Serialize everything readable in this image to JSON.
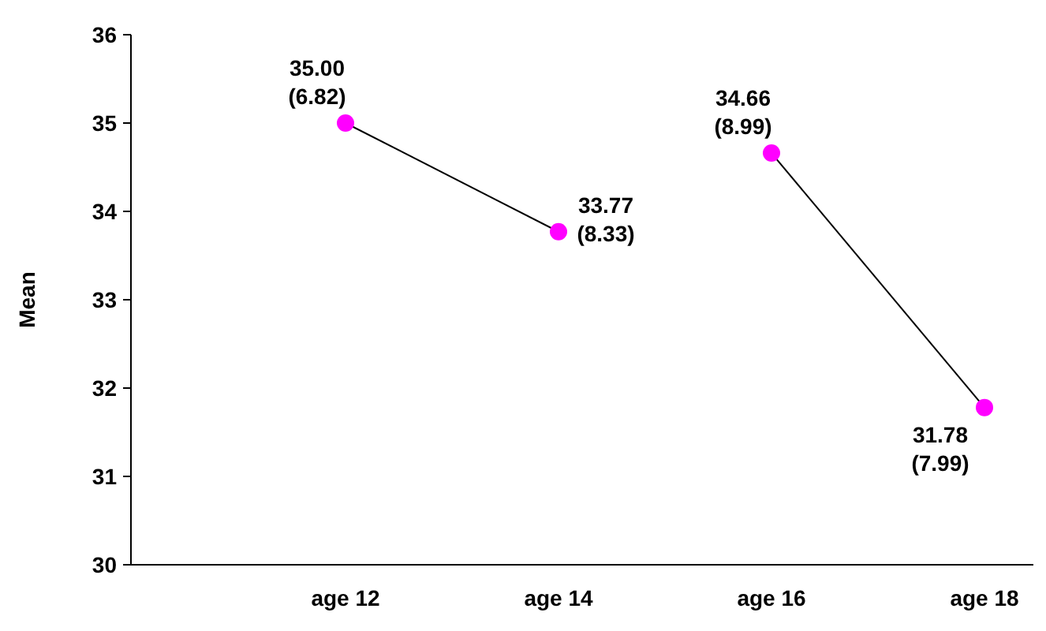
{
  "chart_data": {
    "type": "line",
    "ylabel": "Mean",
    "categories": [
      null,
      "age 12",
      "age 14",
      "age 16",
      "age 18"
    ],
    "series": [
      {
        "color": "#ff00ff",
        "values": [
          null,
          35,
          33.77,
          null,
          null
        ],
        "value_labels": [
          null,
          "35.00\n(6.82)",
          "33.77\n(8.33)",
          null,
          null
        ]
      },
      {
        "color": "#ff00ff",
        "values": [
          null,
          null,
          null,
          34.66,
          31.78
        ],
        "value_labels": [
          null,
          null,
          null,
          "34.66\n(8.99)",
          "31.78\n(7.99)"
        ]
      }
    ],
    "ylim": [
      30,
      36
    ],
    "yticks": [
      30,
      31,
      32,
      33,
      34,
      35,
      36
    ],
    "marker": "circle",
    "line_style": "solid",
    "grid": false
  }
}
